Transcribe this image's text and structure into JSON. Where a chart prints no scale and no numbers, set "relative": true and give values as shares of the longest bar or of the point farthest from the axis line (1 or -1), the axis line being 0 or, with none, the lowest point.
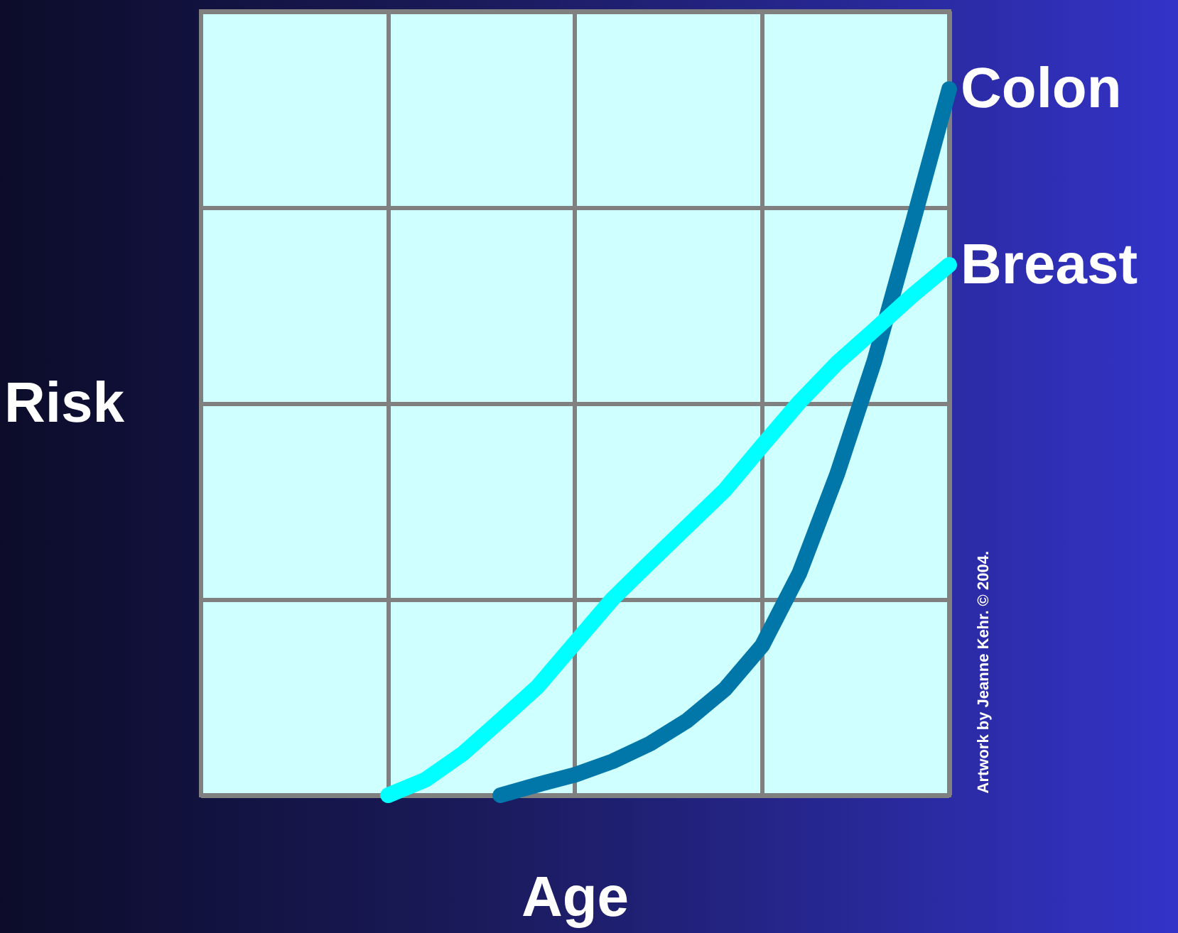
{
  "chart_data": {
    "type": "line",
    "relative": true,
    "xlabel": "Age",
    "ylabel": "Risk",
    "grid": true,
    "legend": false,
    "line_style": "solid",
    "annotations": [
      "Artwork by Jeanne Kehr. © 2004."
    ],
    "categories": [
      null,
      null,
      null,
      null,
      null,
      null,
      null,
      null,
      null,
      null,
      null,
      null,
      null,
      null,
      null,
      null,
      null,
      null,
      null,
      null,
      null
    ],
    "series": [
      {
        "name": "Colon",
        "color": "#0077a8",
        "values": [
          null,
          null,
          null,
          null,
          null,
          null,
          null,
          null,
          0,
          0.015,
          0.029,
          0.048,
          0.073,
          0.106,
          0.15,
          0.212,
          0.315,
          0.454,
          0.615,
          0.806,
          1
        ]
      },
      {
        "name": "Breast",
        "color": "#00ffff",
        "values": [
          null,
          null,
          null,
          null,
          null,
          0,
          0.022,
          0.059,
          0.106,
          0.154,
          0.216,
          0.278,
          0.33,
          0.381,
          0.432,
          0.495,
          0.557,
          0.612,
          0.659,
          0.707,
          0.751
        ]
      }
    ]
  }
}
